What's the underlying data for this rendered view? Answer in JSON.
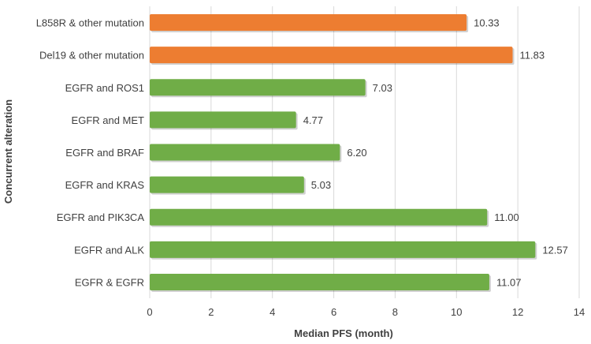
{
  "chart_data": {
    "type": "bar",
    "orientation": "horizontal",
    "title": "",
    "xlabel": "Median PFS (month)",
    "ylabel": "Concurrent alteration",
    "xlim": [
      0,
      14
    ],
    "xticks": [
      0,
      2,
      4,
      6,
      8,
      10,
      12,
      14
    ],
    "grid": true,
    "categories": [
      "L858R & other mutation",
      "Del19 & other mutation",
      "EGFR and ROS1",
      "EGFR and MET",
      "EGFR and BRAF",
      "EGFR and KRAS",
      "EGFR and PIK3CA",
      "EGFR and ALK",
      "EGFR & EGFR"
    ],
    "values": [
      10.33,
      11.83,
      7.03,
      4.77,
      6.2,
      5.03,
      11.0,
      12.57,
      11.07
    ],
    "value_labels": [
      "10.33",
      "11.83",
      "7.03",
      "4.77",
      "6.20",
      "5.03",
      "11.00",
      "12.57",
      "11.07"
    ],
    "bar_colors": [
      "#ED7D31",
      "#ED7D31",
      "#70AD47",
      "#70AD47",
      "#70AD47",
      "#70AD47",
      "#70AD47",
      "#70AD47",
      "#70AD47"
    ],
    "grid_color": "#D9D9D9",
    "text_color": "#404040"
  }
}
